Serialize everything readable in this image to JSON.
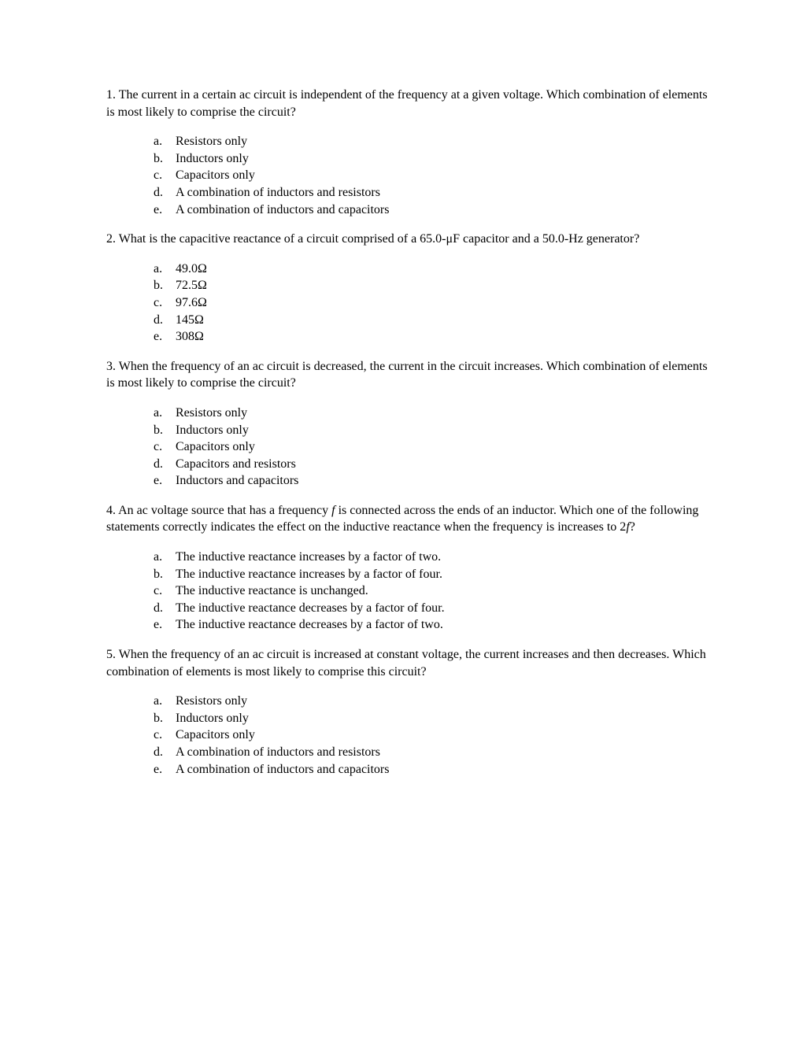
{
  "questions": [
    {
      "number": "1.",
      "text": "The current in a certain ac circuit is independent of the frequency at a given voltage. Which combination of elements is most likely to comprise the circuit?",
      "options": [
        {
          "letter": "a.",
          "text": "Resistors only"
        },
        {
          "letter": "b.",
          "text": "Inductors only"
        },
        {
          "letter": "c.",
          "text": "Capacitors only"
        },
        {
          "letter": "d.",
          "text": "A combination of inductors and resistors"
        },
        {
          "letter": "e.",
          "text": "A combination of inductors and capacitors"
        }
      ]
    },
    {
      "number": "2.",
      "text": "What is the capacitive reactance of a circuit comprised of a 65.0-μF capacitor and a 50.0-Hz generator?",
      "options": [
        {
          "letter": "a.",
          "text": "49.0Ω"
        },
        {
          "letter": "b.",
          "text": "72.5Ω"
        },
        {
          "letter": "c.",
          "text": "97.6Ω"
        },
        {
          "letter": "d.",
          "text": "145Ω"
        },
        {
          "letter": "e.",
          "text": "308Ω"
        }
      ]
    },
    {
      "number": "3.",
      "text": "When the frequency of an ac circuit is decreased, the current in the circuit increases. Which combination of elements is most likely to comprise the circuit?",
      "options": [
        {
          "letter": "a.",
          "text": "Resistors only"
        },
        {
          "letter": "b.",
          "text": "Inductors only"
        },
        {
          "letter": "c.",
          "text": "Capacitors only"
        },
        {
          "letter": "d.",
          "text": "Capacitors and resistors"
        },
        {
          "letter": "e.",
          "text": "Inductors and capacitors"
        }
      ]
    },
    {
      "number": "4.",
      "text_parts": [
        {
          "text": "An ac voltage source that has a frequency ",
          "italic": false
        },
        {
          "text": "f",
          "italic": true
        },
        {
          "text": " is connected across the ends of an inductor. Which one of the following statements correctly indicates the effect on the inductive reactance when the frequency is increases to 2",
          "italic": false
        },
        {
          "text": "f",
          "italic": true
        },
        {
          "text": "?",
          "italic": false
        }
      ],
      "options": [
        {
          "letter": "a.",
          "text": "The inductive reactance increases by a factor of two."
        },
        {
          "letter": "b.",
          "text": "The inductive reactance increases by a factor of four."
        },
        {
          "letter": "c.",
          "text": "The inductive reactance is unchanged."
        },
        {
          "letter": "d.",
          "text": "The inductive reactance decreases by a factor of four."
        },
        {
          "letter": "e.",
          "text": "The inductive reactance decreases by a factor of two."
        }
      ]
    },
    {
      "number": "5.",
      "text": "When the frequency of an ac circuit is increased at constant voltage, the current increases and then decreases. Which combination of elements is most likely to comprise this circuit?",
      "options": [
        {
          "letter": "a.",
          "text": "Resistors only"
        },
        {
          "letter": "b.",
          "text": "Inductors only"
        },
        {
          "letter": "c.",
          "text": "Capacitors only"
        },
        {
          "letter": "d.",
          "text": "A combination of inductors and resistors"
        },
        {
          "letter": "e.",
          "text": "A combination of inductors and capacitors"
        }
      ]
    }
  ]
}
